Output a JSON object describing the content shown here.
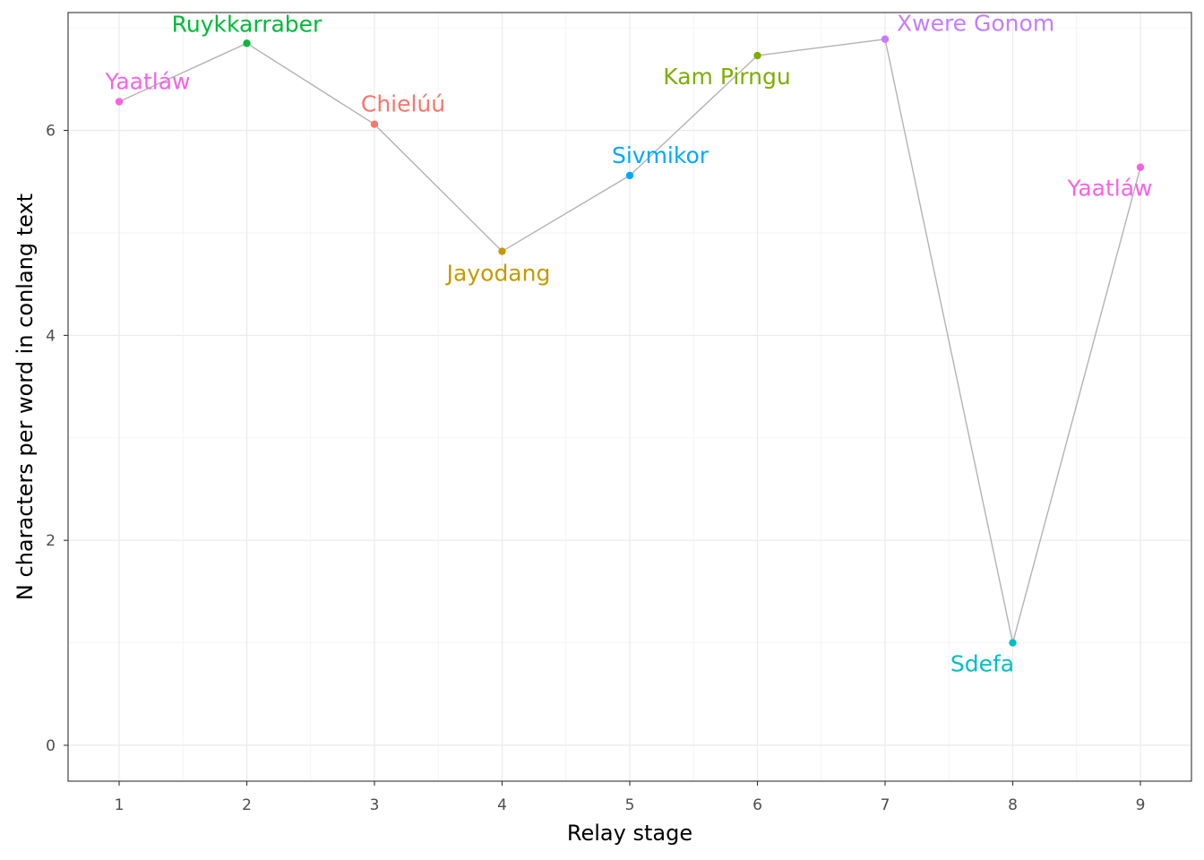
{
  "chart_data": {
    "type": "line",
    "xlabel": "Relay stage",
    "ylabel": "N characters per word in conlang text",
    "xlim": [
      0.6,
      9.4
    ],
    "ylim": [
      -0.35,
      7.15
    ],
    "x_ticks": [
      1,
      2,
      3,
      4,
      5,
      6,
      7,
      8,
      9
    ],
    "y_ticks": [
      0,
      2,
      4,
      6
    ],
    "grid": true,
    "legend": "none",
    "line_color": "#b3b3b3",
    "points": [
      {
        "x": 1,
        "y": 6.28,
        "label": "Yaatláw",
        "color": "#f564e3"
      },
      {
        "x": 2,
        "y": 6.85,
        "label": "Ruykkarraber",
        "color": "#00ba38"
      },
      {
        "x": 3,
        "y": 6.06,
        "label": "Chielúú",
        "color": "#f8766d"
      },
      {
        "x": 4,
        "y": 4.82,
        "label": "Jayodang",
        "color": "#c49a00"
      },
      {
        "x": 5,
        "y": 5.56,
        "label": "Sivmikor",
        "color": "#00a9ff"
      },
      {
        "x": 6,
        "y": 6.73,
        "label": "Kam Pirngu",
        "color": "#7cae00"
      },
      {
        "x": 7,
        "y": 6.89,
        "label": "Xwere Gonom",
        "color": "#c77cff"
      },
      {
        "x": 8,
        "y": 1.0,
        "label": "Sdefa",
        "color": "#00bfc4"
      },
      {
        "x": 9,
        "y": 5.64,
        "label": "Yaatláw",
        "color": "#f564e3"
      }
    ]
  }
}
